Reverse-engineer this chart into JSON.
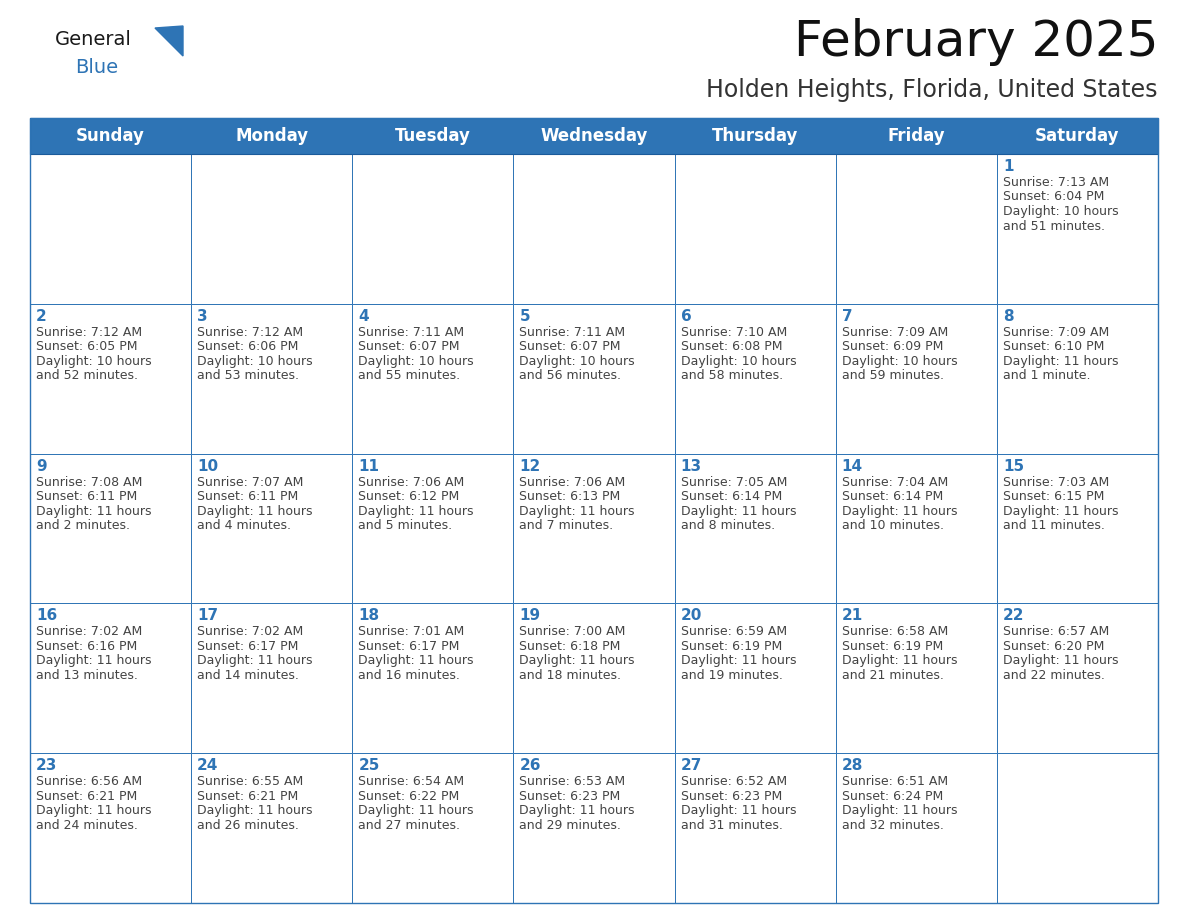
{
  "title": "February 2025",
  "subtitle": "Holden Heights, Florida, United States",
  "header_bg": "#2E74B5",
  "header_text_color": "#FFFFFF",
  "cell_bg": "#FFFFFF",
  "cell_border_color": "#2E74B5",
  "day_number_color": "#2E74B5",
  "cell_text_color": "#444444",
  "days_of_week": [
    "Sunday",
    "Monday",
    "Tuesday",
    "Wednesday",
    "Thursday",
    "Friday",
    "Saturday"
  ],
  "weeks": [
    [
      {
        "day": null,
        "info": ""
      },
      {
        "day": null,
        "info": ""
      },
      {
        "day": null,
        "info": ""
      },
      {
        "day": null,
        "info": ""
      },
      {
        "day": null,
        "info": ""
      },
      {
        "day": null,
        "info": ""
      },
      {
        "day": 1,
        "info": "Sunrise: 7:13 AM\nSunset: 6:04 PM\nDaylight: 10 hours\nand 51 minutes."
      }
    ],
    [
      {
        "day": 2,
        "info": "Sunrise: 7:12 AM\nSunset: 6:05 PM\nDaylight: 10 hours\nand 52 minutes."
      },
      {
        "day": 3,
        "info": "Sunrise: 7:12 AM\nSunset: 6:06 PM\nDaylight: 10 hours\nand 53 minutes."
      },
      {
        "day": 4,
        "info": "Sunrise: 7:11 AM\nSunset: 6:07 PM\nDaylight: 10 hours\nand 55 minutes."
      },
      {
        "day": 5,
        "info": "Sunrise: 7:11 AM\nSunset: 6:07 PM\nDaylight: 10 hours\nand 56 minutes."
      },
      {
        "day": 6,
        "info": "Sunrise: 7:10 AM\nSunset: 6:08 PM\nDaylight: 10 hours\nand 58 minutes."
      },
      {
        "day": 7,
        "info": "Sunrise: 7:09 AM\nSunset: 6:09 PM\nDaylight: 10 hours\nand 59 minutes."
      },
      {
        "day": 8,
        "info": "Sunrise: 7:09 AM\nSunset: 6:10 PM\nDaylight: 11 hours\nand 1 minute."
      }
    ],
    [
      {
        "day": 9,
        "info": "Sunrise: 7:08 AM\nSunset: 6:11 PM\nDaylight: 11 hours\nand 2 minutes."
      },
      {
        "day": 10,
        "info": "Sunrise: 7:07 AM\nSunset: 6:11 PM\nDaylight: 11 hours\nand 4 minutes."
      },
      {
        "day": 11,
        "info": "Sunrise: 7:06 AM\nSunset: 6:12 PM\nDaylight: 11 hours\nand 5 minutes."
      },
      {
        "day": 12,
        "info": "Sunrise: 7:06 AM\nSunset: 6:13 PM\nDaylight: 11 hours\nand 7 minutes."
      },
      {
        "day": 13,
        "info": "Sunrise: 7:05 AM\nSunset: 6:14 PM\nDaylight: 11 hours\nand 8 minutes."
      },
      {
        "day": 14,
        "info": "Sunrise: 7:04 AM\nSunset: 6:14 PM\nDaylight: 11 hours\nand 10 minutes."
      },
      {
        "day": 15,
        "info": "Sunrise: 7:03 AM\nSunset: 6:15 PM\nDaylight: 11 hours\nand 11 minutes."
      }
    ],
    [
      {
        "day": 16,
        "info": "Sunrise: 7:02 AM\nSunset: 6:16 PM\nDaylight: 11 hours\nand 13 minutes."
      },
      {
        "day": 17,
        "info": "Sunrise: 7:02 AM\nSunset: 6:17 PM\nDaylight: 11 hours\nand 14 minutes."
      },
      {
        "day": 18,
        "info": "Sunrise: 7:01 AM\nSunset: 6:17 PM\nDaylight: 11 hours\nand 16 minutes."
      },
      {
        "day": 19,
        "info": "Sunrise: 7:00 AM\nSunset: 6:18 PM\nDaylight: 11 hours\nand 18 minutes."
      },
      {
        "day": 20,
        "info": "Sunrise: 6:59 AM\nSunset: 6:19 PM\nDaylight: 11 hours\nand 19 minutes."
      },
      {
        "day": 21,
        "info": "Sunrise: 6:58 AM\nSunset: 6:19 PM\nDaylight: 11 hours\nand 21 minutes."
      },
      {
        "day": 22,
        "info": "Sunrise: 6:57 AM\nSunset: 6:20 PM\nDaylight: 11 hours\nand 22 minutes."
      }
    ],
    [
      {
        "day": 23,
        "info": "Sunrise: 6:56 AM\nSunset: 6:21 PM\nDaylight: 11 hours\nand 24 minutes."
      },
      {
        "day": 24,
        "info": "Sunrise: 6:55 AM\nSunset: 6:21 PM\nDaylight: 11 hours\nand 26 minutes."
      },
      {
        "day": 25,
        "info": "Sunrise: 6:54 AM\nSunset: 6:22 PM\nDaylight: 11 hours\nand 27 minutes."
      },
      {
        "day": 26,
        "info": "Sunrise: 6:53 AM\nSunset: 6:23 PM\nDaylight: 11 hours\nand 29 minutes."
      },
      {
        "day": 27,
        "info": "Sunrise: 6:52 AM\nSunset: 6:23 PM\nDaylight: 11 hours\nand 31 minutes."
      },
      {
        "day": 28,
        "info": "Sunrise: 6:51 AM\nSunset: 6:24 PM\nDaylight: 11 hours\nand 32 minutes."
      },
      {
        "day": null,
        "info": ""
      }
    ]
  ],
  "logo_text_general": "General",
  "logo_text_blue": "Blue",
  "logo_color_general": "#1a1a1a",
  "logo_color_blue": "#2E74B5",
  "logo_triangle_color": "#2E74B5",
  "title_fontsize": 36,
  "subtitle_fontsize": 17,
  "header_fontsize": 12,
  "day_number_fontsize": 11,
  "cell_text_fontsize": 9,
  "fig_width": 11.88,
  "fig_height": 9.18,
  "dpi": 100
}
